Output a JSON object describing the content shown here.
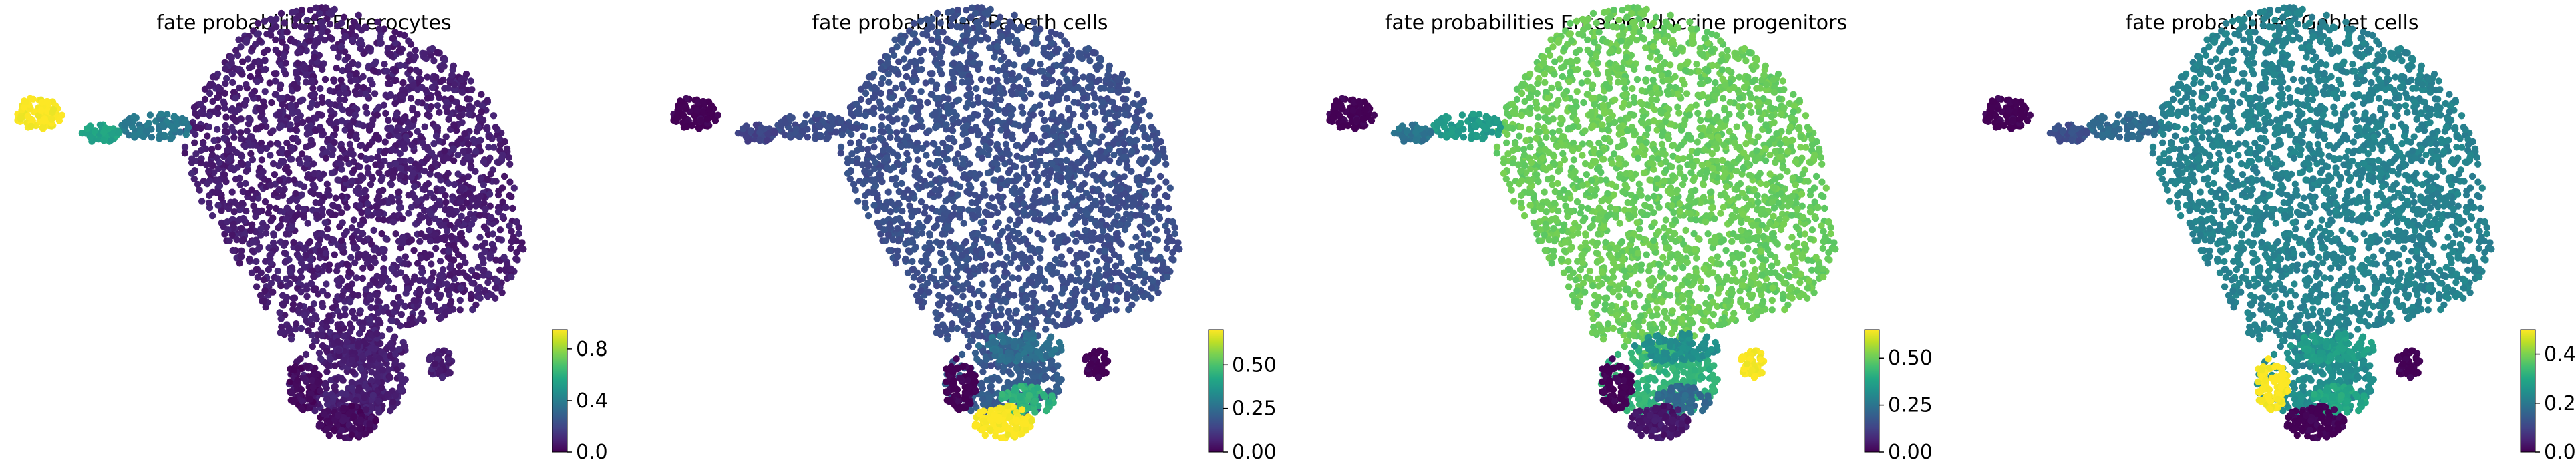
{
  "chart_data": [
    {
      "type": "scatter",
      "title": "fate probabilities Enterocytes",
      "colorbar": {
        "ticks": [
          "0.0",
          "0.4",
          "0.8"
        ],
        "tick_values": [
          0.0,
          0.4,
          0.8
        ],
        "range": [
          0.0,
          0.95
        ]
      },
      "region_values": {
        "islet": 0.95,
        "bridge_near": 0.55,
        "bridge_far": 0.38,
        "main_body": 0.08,
        "lower_stem": 0.08,
        "spur_right": 0.08,
        "base_left": 0.03,
        "base_bottom": 0.03,
        "pocket_upper": 0.08,
        "pocket_lower": 0.08
      }
    },
    {
      "type": "scatter",
      "title": "fate probabilities Paneth cells",
      "colorbar": {
        "ticks": [
          "0.00",
          "0.25",
          "0.50"
        ],
        "tick_values": [
          0.0,
          0.25,
          0.5
        ],
        "range": [
          0.0,
          0.7
        ]
      },
      "region_values": {
        "islet": 0.0,
        "bridge_near": 0.14,
        "bridge_far": 0.16,
        "main_body": 0.17,
        "lower_stem": 0.2,
        "spur_right": 0.0,
        "base_left": 0.0,
        "base_bottom": 0.7,
        "pocket_upper": 0.26,
        "pocket_lower": 0.45
      }
    },
    {
      "type": "scatter",
      "title": "fate probabilities Enteroendocrine progenitors",
      "colorbar": {
        "ticks": [
          "0.00",
          "0.25",
          "0.50"
        ],
        "tick_values": [
          0.0,
          0.25,
          0.5
        ],
        "range": [
          0.0,
          0.65
        ]
      },
      "region_values": {
        "islet": 0.0,
        "bridge_near": 0.25,
        "bridge_far": 0.35,
        "main_body": 0.5,
        "lower_stem": 0.42,
        "spur_right": 0.65,
        "base_left": 0.0,
        "base_bottom": 0.04,
        "pocket_upper": 0.32,
        "pocket_lower": 0.22
      }
    },
    {
      "type": "scatter",
      "title": "fate probabilities Goblet cells",
      "colorbar": {
        "ticks": [
          "0.0",
          "0.2",
          "0.4"
        ],
        "tick_values": [
          0.0,
          0.2,
          0.4
        ],
        "range": [
          0.0,
          0.5
        ]
      },
      "region_values": {
        "islet": 0.0,
        "bridge_near": 0.12,
        "bridge_far": 0.17,
        "main_body": 0.22,
        "lower_stem": 0.24,
        "spur_right": 0.0,
        "base_left": 0.5,
        "base_bottom": 0.0,
        "pocket_upper": 0.28,
        "pocket_lower": 0.3
      }
    }
  ]
}
